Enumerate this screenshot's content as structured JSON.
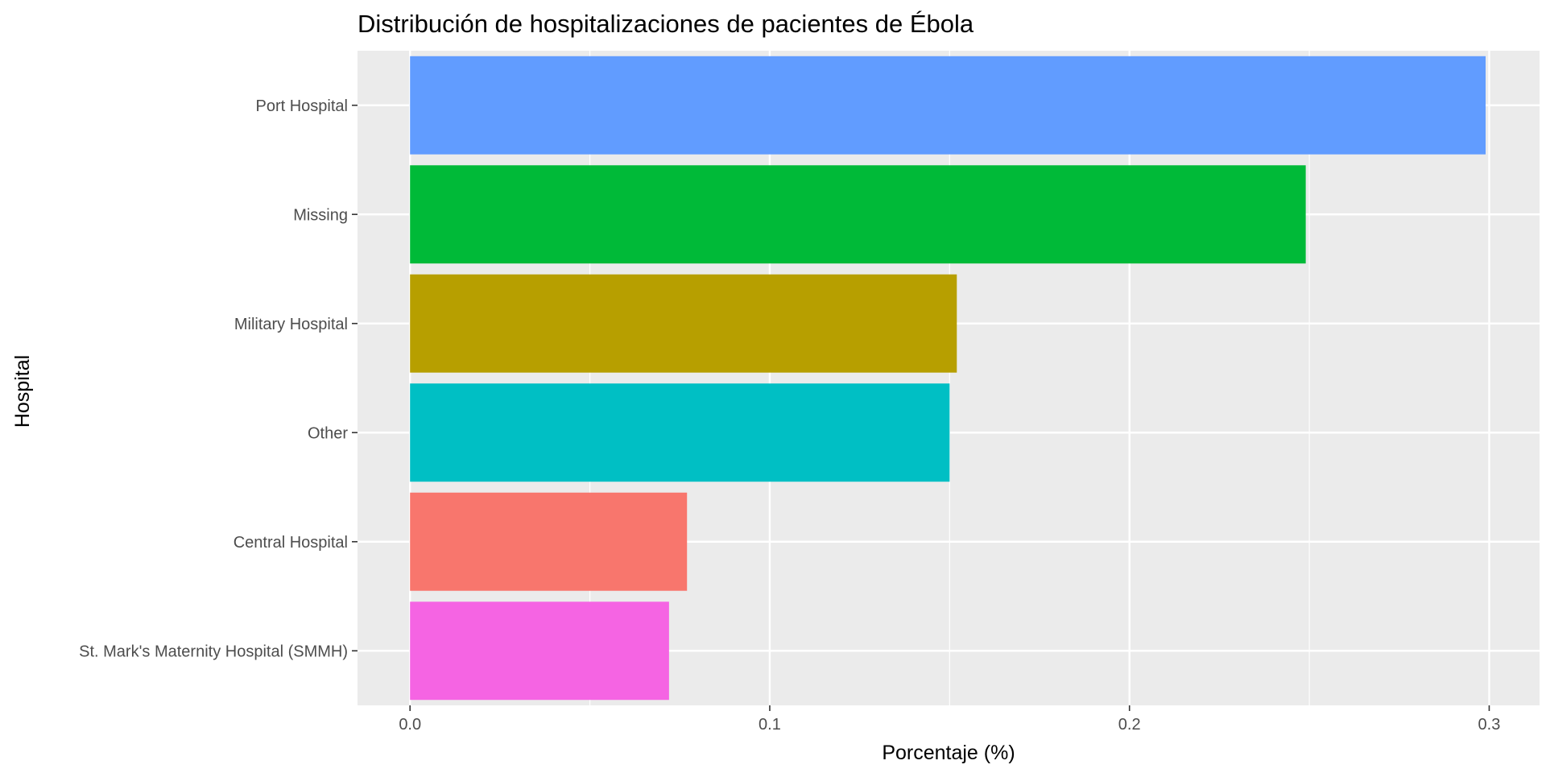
{
  "chart_data": {
    "type": "bar",
    "orientation": "horizontal",
    "title": "Distribución de hospitalizaciones de pacientes de Ébola",
    "xlabel": "Porcentaje (%)",
    "ylabel": "Hospital",
    "categories": [
      "Port Hospital",
      "Missing",
      "Military Hospital",
      "Other",
      "Central Hospital",
      "St. Mark's Maternity Hospital (SMMH)"
    ],
    "values": [
      0.299,
      0.249,
      0.152,
      0.15,
      0.077,
      0.072
    ],
    "colors": [
      "#619CFF",
      "#00BA38",
      "#B79F00",
      "#00BFC4",
      "#F8766D",
      "#F564E3"
    ],
    "xticks": [
      "0.0",
      "0.1",
      "0.2",
      "0.3"
    ],
    "xlim": [
      -0.0146,
      0.314
    ],
    "grid": true,
    "legend": "none",
    "panel_background": "#EBEBEB"
  }
}
